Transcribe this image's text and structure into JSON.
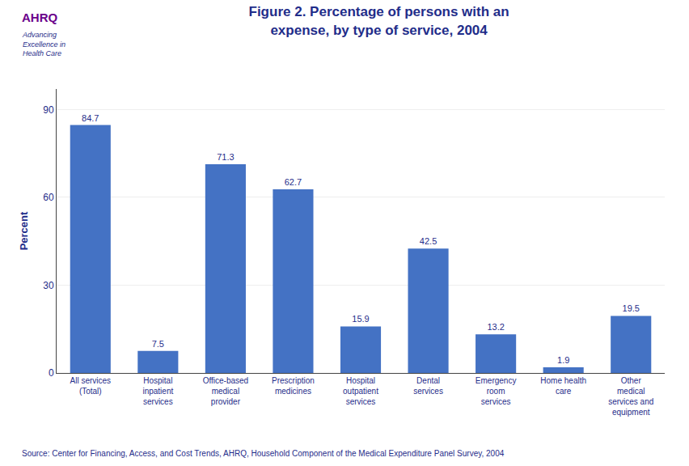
{
  "chart_data": {
    "type": "bar",
    "title": "Figure 2. Percentage of persons with an\nexpense, by type of service, 2004",
    "ylabel": "Percent",
    "annotations": [
      "AHRQ",
      "Advancing\nExcellence in\nHealth Care",
      "Source: Center for Financing, Access, and Cost Trends, AHRQ, Household Component of the Medical Expenditure Panel Survey, 2004"
    ],
    "categories": [
      "All services\n(Total)",
      "Hospital\ninpatient\nservices",
      "Office-based\nmedical\nprovider",
      "Prescription\nmedicines",
      "Hospital\noutpatient\nservices",
      "Dental\nservices",
      "Emergency\nroom\nservices",
      "Home health\ncare",
      "Other\nmedical\nservices and\nequipment"
    ],
    "values": [
      84.7,
      7.5,
      71.3,
      62.7,
      15.9,
      42.5,
      13.2,
      1.9,
      19.5
    ],
    "color": "#4472C4",
    "ylim": [
      0,
      97
    ],
    "yticks": [
      0,
      30,
      60,
      90
    ],
    "grid": true,
    "data_labels": true
  }
}
